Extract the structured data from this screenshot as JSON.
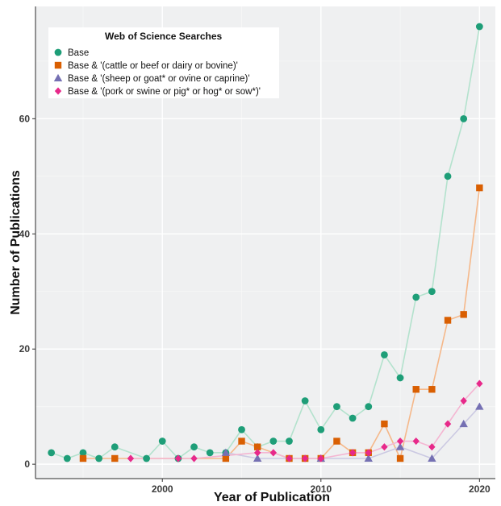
{
  "chart_data": {
    "type": "line",
    "xlabel": "Year of Publication",
    "ylabel": "Number of Publications",
    "xlim": [
      1992,
      2021
    ],
    "ylim": [
      -2.5,
      79.5
    ],
    "x_ticks": [
      2000,
      2010,
      2020
    ],
    "y_ticks": [
      0,
      20,
      40,
      60
    ],
    "x_tick_labels": [
      "2000",
      "2010",
      "2020"
    ],
    "y_tick_labels": [
      "0",
      "20",
      "40",
      "60"
    ],
    "grid": true,
    "background": "#eff0f1",
    "legend": {
      "title": "Web of Science Searches",
      "placement": "top-left"
    },
    "series": [
      {
        "name": "Base",
        "marker": "circle",
        "color": "#1e9e78",
        "line_color": "#b3e2cd",
        "points": [
          [
            1993,
            2
          ],
          [
            1994,
            1
          ],
          [
            1995,
            2
          ],
          [
            1996,
            1
          ],
          [
            1997,
            3
          ],
          [
            1999,
            1
          ],
          [
            2000,
            4
          ],
          [
            2001,
            1
          ],
          [
            2002,
            3
          ],
          [
            2003,
            2
          ],
          [
            2004,
            2
          ],
          [
            2005,
            6
          ],
          [
            2006,
            3
          ],
          [
            2007,
            4
          ],
          [
            2008,
            4
          ],
          [
            2009,
            11
          ],
          [
            2010,
            6
          ],
          [
            2011,
            10
          ],
          [
            2012,
            8
          ],
          [
            2013,
            10
          ],
          [
            2014,
            19
          ],
          [
            2015,
            15
          ],
          [
            2016,
            29
          ],
          [
            2017,
            30
          ],
          [
            2018,
            50
          ],
          [
            2019,
            60
          ],
          [
            2020,
            76
          ]
        ]
      },
      {
        "name": "Base & '(cattle or beef or dairy or bovine)'",
        "marker": "square",
        "color": "#d95f02",
        "line_color": "#f5b88a",
        "points": [
          [
            1995,
            1
          ],
          [
            1997,
            1
          ],
          [
            2004,
            1
          ],
          [
            2005,
            4
          ],
          [
            2006,
            3
          ],
          [
            2008,
            1
          ],
          [
            2009,
            1
          ],
          [
            2010,
            1
          ],
          [
            2011,
            4
          ],
          [
            2012,
            2
          ],
          [
            2013,
            2
          ],
          [
            2014,
            7
          ],
          [
            2015,
            1
          ],
          [
            2016,
            13
          ],
          [
            2017,
            13
          ],
          [
            2018,
            25
          ],
          [
            2019,
            26
          ],
          [
            2020,
            48
          ]
        ]
      },
      {
        "name": "Base & '(sheep or goat* or ovine or caprine)'",
        "marker": "triangle",
        "color": "#7570b3",
        "line_color": "#cbc9e2",
        "points": [
          [
            2004,
            2
          ],
          [
            2006,
            1
          ],
          [
            2010,
            1
          ],
          [
            2013,
            1
          ],
          [
            2015,
            3
          ],
          [
            2017,
            1
          ],
          [
            2019,
            7
          ],
          [
            2020,
            10
          ]
        ]
      },
      {
        "name": "Base & '(pork or swine or pig* or hog* or sow*)'",
        "marker": "diamond",
        "color": "#e7298a",
        "line_color": "#f4b6d2",
        "points": [
          [
            1998,
            1
          ],
          [
            2001,
            1
          ],
          [
            2002,
            1
          ],
          [
            2006,
            2
          ],
          [
            2007,
            2
          ],
          [
            2008,
            1
          ],
          [
            2009,
            1
          ],
          [
            2010,
            1
          ],
          [
            2012,
            2
          ],
          [
            2013,
            2
          ],
          [
            2014,
            3
          ],
          [
            2015,
            4
          ],
          [
            2016,
            4
          ],
          [
            2017,
            3
          ],
          [
            2018,
            7
          ],
          [
            2019,
            11
          ],
          [
            2020,
            14
          ]
        ]
      }
    ]
  }
}
